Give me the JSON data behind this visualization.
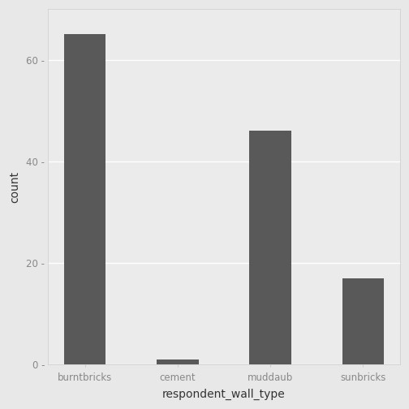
{
  "categories": [
    "burntbricks",
    "cement",
    "muddaub",
    "sunbricks"
  ],
  "values": [
    65,
    1,
    46,
    17
  ],
  "bar_color": "#595959",
  "figure_background": "#E8E8E8",
  "panel_background": "#EBEBEB",
  "panel_border_color": "#CCCCCC",
  "grid_color": "#FFFFFF",
  "xlabel": "respondent_wall_type",
  "ylabel": "count",
  "ylim": [
    0,
    70
  ],
  "yticks": [
    0,
    20,
    40,
    60
  ],
  "tick_label_fontsize": 8.5,
  "axis_label_fontsize": 10,
  "bar_width": 0.45,
  "tick_color": "#888888",
  "label_color": "#333333"
}
